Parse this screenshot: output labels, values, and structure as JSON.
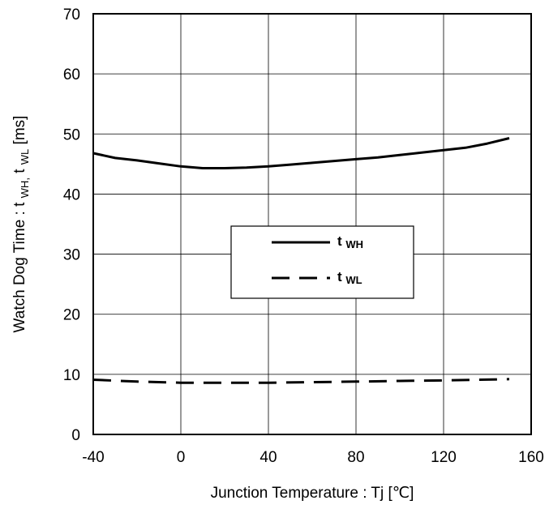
{
  "chart_data": {
    "type": "line",
    "title": "",
    "xlabel": "Junction Temperature : Tj [℃]",
    "ylabel": {
      "prefix": "Watch Dog Time : t",
      "sub1": "WH,",
      "mid": " t",
      "sub2": "WL",
      "suffix": " [ms]"
    },
    "xlim": [
      -40,
      160
    ],
    "ylim": [
      0,
      70
    ],
    "xticks": [
      "-40",
      "0",
      "40",
      "80",
      "120",
      "160"
    ],
    "yticks": [
      "0",
      "10",
      "20",
      "30",
      "40",
      "50",
      "60",
      "70"
    ],
    "xtick_values": [
      -40,
      0,
      40,
      80,
      120,
      160
    ],
    "ytick_values": [
      0,
      10,
      20,
      30,
      40,
      50,
      60,
      70
    ],
    "grid": true,
    "legend": {
      "placement": "center-right",
      "entries": [
        {
          "prefix": "t",
          "sub": "WH",
          "style": "solid"
        },
        {
          "prefix": "t",
          "sub": "WL",
          "style": "dashed"
        }
      ]
    },
    "series": [
      {
        "style": "solid",
        "x": [
          -40,
          -30,
          -20,
          -10,
          0,
          10,
          20,
          30,
          40,
          50,
          60,
          70,
          80,
          90,
          100,
          110,
          120,
          130,
          140,
          150
        ],
        "y": [
          46.8,
          46.0,
          45.6,
          45.1,
          44.6,
          44.3,
          44.3,
          44.4,
          44.6,
          44.9,
          45.2,
          45.5,
          45.8,
          46.1,
          46.5,
          46.9,
          47.3,
          47.7,
          48.4,
          49.3
        ]
      },
      {
        "style": "dashed",
        "x": [
          -40,
          -20,
          0,
          20,
          40,
          60,
          80,
          100,
          120,
          150
        ],
        "y": [
          9.1,
          8.8,
          8.6,
          8.6,
          8.6,
          8.7,
          8.8,
          8.9,
          9.0,
          9.2
        ]
      }
    ]
  }
}
